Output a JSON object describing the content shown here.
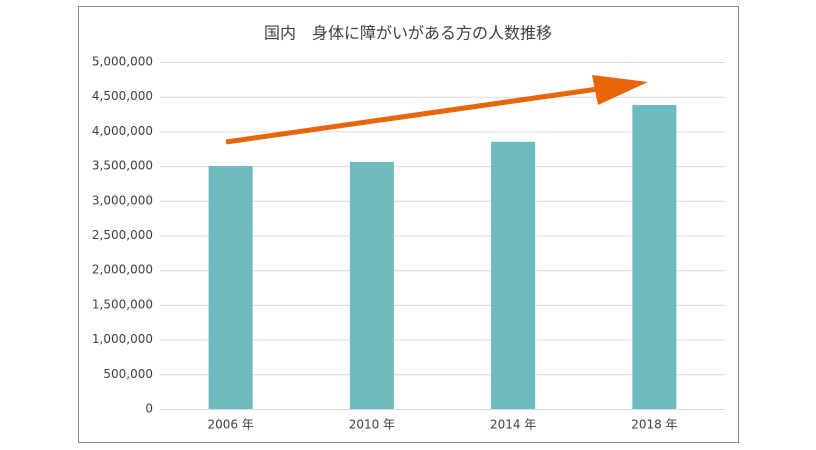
{
  "chart_data": {
    "type": "bar",
    "title": "国内　身体に障がいがある方の人数推移",
    "categories": [
      "2006 年",
      "2010 年",
      "2014 年",
      "2018 年"
    ],
    "values": [
      3500000,
      3560000,
      3850000,
      4380000
    ],
    "color": "#6dbabf",
    "ylim": [
      0,
      5000000
    ],
    "yticks": [
      0,
      {
        "value": 500000,
        "label": "500,000"
      },
      {
        "value": 1000000,
        "label": "1,000,000"
      },
      {
        "value": 1500000,
        "label": "1,500,000"
      },
      {
        "value": 2000000,
        "label": "2,000,000"
      },
      {
        "value": 2500000,
        "label": "2,500,000"
      },
      {
        "value": 3000000,
        "label": "3,000,000"
      },
      {
        "value": 3500000,
        "label": "3,500,000"
      },
      {
        "value": 4000000,
        "label": "4,000,000"
      },
      {
        "value": 4500000,
        "label": "4,500,000"
      },
      {
        "value": 5000000,
        "label": "5,000,000"
      }
    ],
    "grid": true
  }
}
